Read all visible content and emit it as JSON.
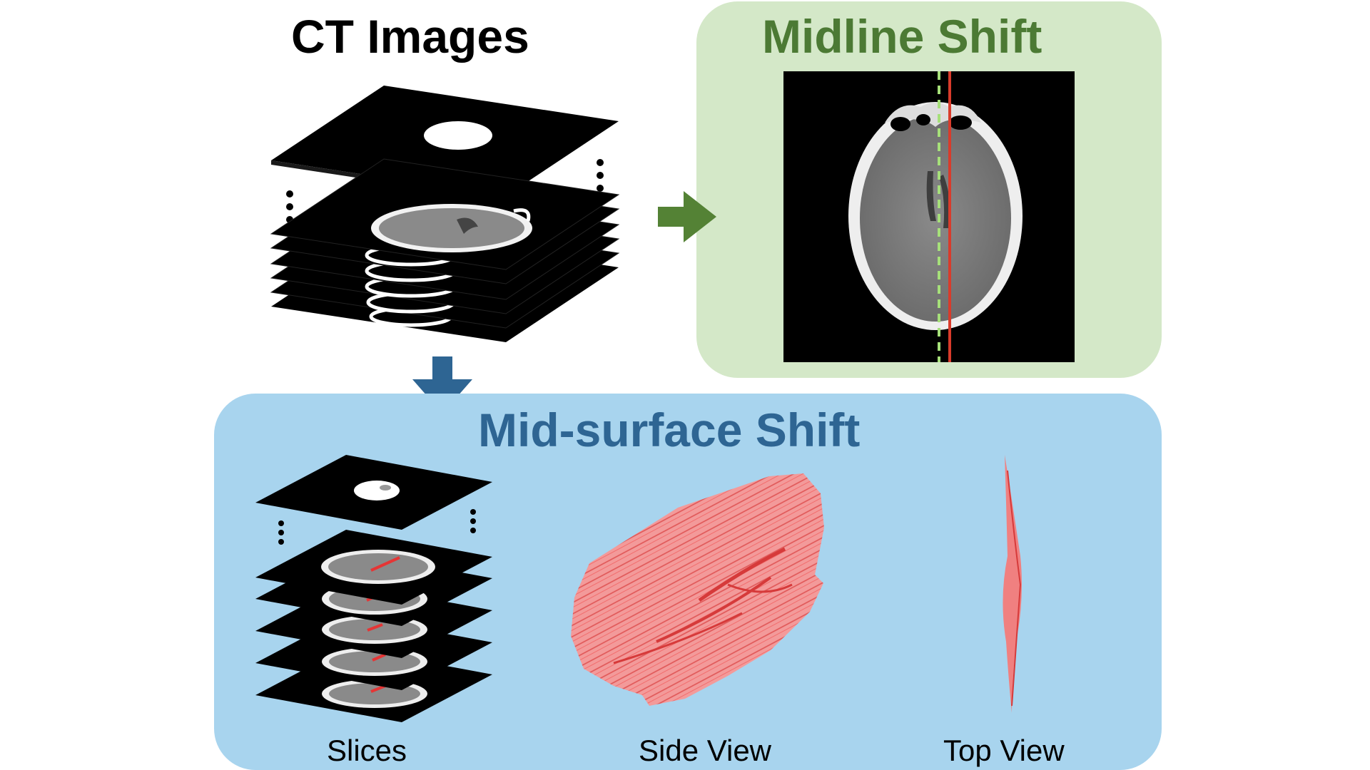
{
  "ct_images": {
    "title": "CT Images"
  },
  "midline_shift": {
    "title": "Midline Shift",
    "panel_color": "#d4e8c8",
    "title_color": "#4c7a34",
    "arrow_color": "#548235",
    "dashed_line_color": "#a6e07a",
    "shift_line_color": "#d93b2b"
  },
  "mid_surface_shift": {
    "title": "Mid-surface Shift",
    "panel_color": "#a8d4ee",
    "title_color": "#2e6593",
    "arrow_color": "#2e6593",
    "surface_color": "#f08080",
    "captions": {
      "slices": "Slices",
      "side_view": "Side View",
      "top_view": "Top View"
    }
  }
}
